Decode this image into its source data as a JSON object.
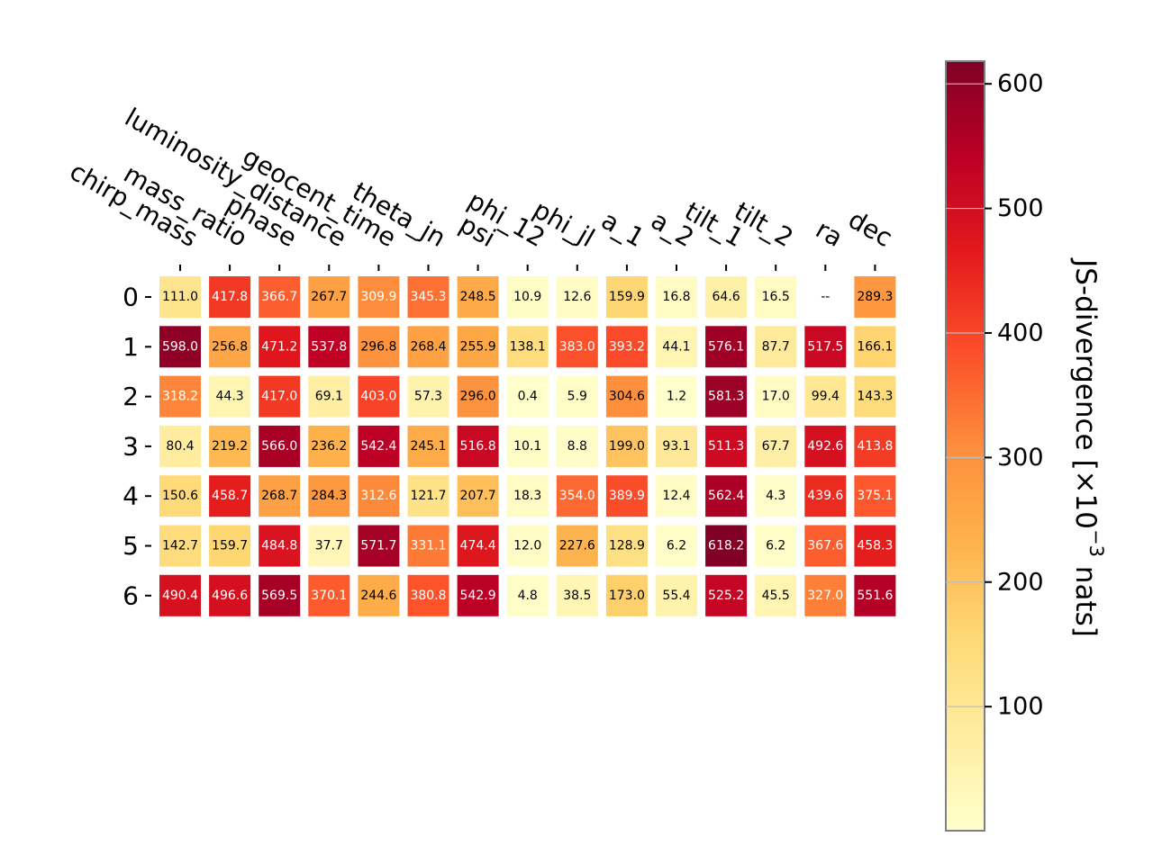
{
  "chart_data": {
    "type": "heatmap",
    "columns": [
      "chirp_mass",
      "mass_ratio",
      "phase",
      "luminosity_distance",
      "geocent_time",
      "theta_jn",
      "psi",
      "phi_12",
      "phi_jl",
      "a_1",
      "a_2",
      "tilt_1",
      "tilt_2",
      "ra",
      "dec"
    ],
    "rows": [
      "0",
      "1",
      "2",
      "3",
      "4",
      "5",
      "6"
    ],
    "values": [
      [
        111.0,
        417.8,
        366.7,
        267.7,
        309.9,
        345.3,
        248.5,
        10.9,
        12.6,
        159.9,
        16.8,
        64.6,
        16.5,
        null,
        289.3
      ],
      [
        598.0,
        256.8,
        471.2,
        537.8,
        296.8,
        268.4,
        255.9,
        138.1,
        383.0,
        393.2,
        44.1,
        576.1,
        87.7,
        517.5,
        166.1
      ],
      [
        318.2,
        44.3,
        417.0,
        69.1,
        403.0,
        57.3,
        296.0,
        0.4,
        5.9,
        304.6,
        1.2,
        581.3,
        17.0,
        99.4,
        143.3
      ],
      [
        80.4,
        219.2,
        566.0,
        236.2,
        542.4,
        245.1,
        516.8,
        10.1,
        8.8,
        199.0,
        93.1,
        511.3,
        67.7,
        492.6,
        413.8
      ],
      [
        150.6,
        458.7,
        268.7,
        284.3,
        312.6,
        121.7,
        207.7,
        18.3,
        354.0,
        389.9,
        12.4,
        562.4,
        4.3,
        439.6,
        375.1
      ],
      [
        142.7,
        159.7,
        484.8,
        37.7,
        571.7,
        331.1,
        474.4,
        12.0,
        227.6,
        128.9,
        6.2,
        618.2,
        6.2,
        367.6,
        458.3
      ],
      [
        490.4,
        496.6,
        569.5,
        370.1,
        244.6,
        380.8,
        542.9,
        4.8,
        38.5,
        173.0,
        55.4,
        525.2,
        45.5,
        327.0,
        551.6
      ]
    ],
    "missing_label": "--",
    "value_decimals": 1,
    "colormap": "YlOrRd",
    "colormap_stops": [
      "#ffffcc",
      "#ffeda0",
      "#fed976",
      "#feb24c",
      "#fd8d3c",
      "#fc4e2a",
      "#e31a1c",
      "#bd0026",
      "#800026"
    ],
    "colorbar": {
      "label": "JS-divergence [×10",
      "label_exponent": "−3",
      "label_suffix": " nats]",
      "range": [
        0.4,
        618.2
      ],
      "ticks": [
        100,
        200,
        300,
        400,
        500,
        600
      ],
      "tick_labels": [
        "100",
        "200",
        "300",
        "400",
        "500",
        "600"
      ]
    },
    "text_color_light": "#ffffff",
    "text_color_dark": "#000000",
    "text_color_threshold": 309,
    "grid": false
  }
}
